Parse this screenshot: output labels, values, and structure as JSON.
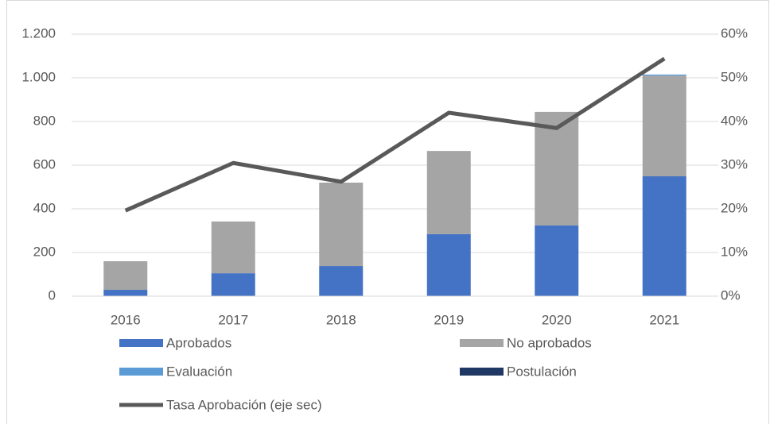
{
  "chart_data": {
    "type": "bar",
    "stacked": true,
    "categories": [
      "2016",
      "2017",
      "2018",
      "2019",
      "2020",
      "2021"
    ],
    "series": [
      {
        "name": "Aprobados",
        "type": "bar",
        "color": "#4472c4",
        "values": [
          29,
          105,
          138,
          284,
          324,
          549
        ]
      },
      {
        "name": "No aprobados",
        "type": "bar",
        "color": "#a5a5a5",
        "values": [
          131,
          237,
          382,
          381,
          520,
          461
        ]
      },
      {
        "name": "Evaluación",
        "type": "bar",
        "color": "#5b9bd5",
        "values": [
          0,
          0,
          0,
          0,
          0,
          5
        ]
      },
      {
        "name": "Postulación",
        "type": "bar",
        "color": "#203864",
        "values": [
          0,
          0,
          0,
          0,
          0,
          0
        ]
      },
      {
        "name": "Tasa Aprobación (eje sec)",
        "type": "line",
        "axis": "y2",
        "color": "#595959",
        "values": [
          19.6,
          30.5,
          26.2,
          42,
          38.5,
          54.4
        ]
      }
    ],
    "ylim": [
      0,
      1200
    ],
    "yticks": [
      0,
      200,
      400,
      600,
      800,
      {
        "value": 1000,
        "label": "1.000"
      },
      {
        "value": 1200,
        "label": "1.200"
      }
    ],
    "y2lim": [
      0,
      60
    ],
    "y2ticks": [
      {
        "value": 0,
        "label": "0%"
      },
      {
        "value": 10,
        "label": "10%"
      },
      {
        "value": 20,
        "label": "20%"
      },
      {
        "value": 30,
        "label": "30%"
      },
      {
        "value": 40,
        "label": "40%"
      },
      {
        "value": 50,
        "label": "50%"
      },
      {
        "value": 60,
        "label": "60%"
      }
    ],
    "grid": true,
    "legend": "bottom"
  }
}
